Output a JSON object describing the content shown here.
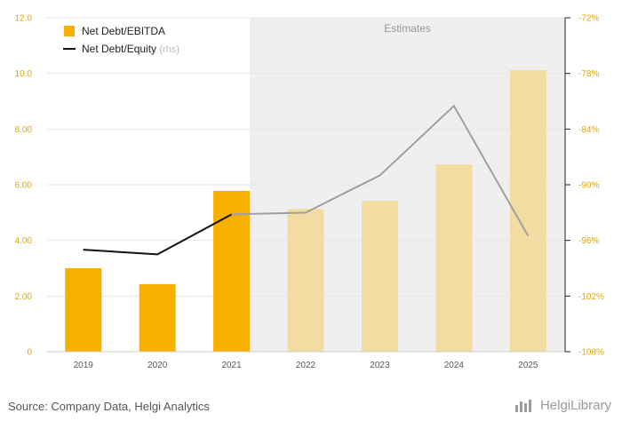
{
  "chart_data": {
    "type": "bar",
    "categories": [
      "2019",
      "2020",
      "2021",
      "2022",
      "2023",
      "2024",
      "2025"
    ],
    "estimate_start_index": 3,
    "estimates_label": "Estimates",
    "series": [
      {
        "name": "Net Debt/EBITDA",
        "type": "bar",
        "axis": "left",
        "values": [
          3.0,
          2.43,
          5.78,
          5.13,
          5.42,
          6.73,
          10.12
        ],
        "color": "#f7b000",
        "estimate_color": "#f3dca2"
      },
      {
        "name": "Net Debt/Equity",
        "name_suffix": "(rhs)",
        "type": "line",
        "axis": "right",
        "values": [
          -97.0,
          -97.5,
          -93.2,
          -93.0,
          -89.0,
          -81.5,
          -95.5
        ],
        "color": "#111111",
        "estimate_color": "#a0a0a0"
      }
    ],
    "y_left": {
      "ylim": [
        0,
        12
      ],
      "ticks": [
        0,
        2,
        4,
        6,
        8,
        10,
        12
      ],
      "tick_labels": [
        "0",
        "2.00",
        "4.00",
        "6.00",
        "8.00",
        "10.0",
        "12.0"
      ]
    },
    "y_right": {
      "ylim": [
        -108,
        -72
      ],
      "ticks": [
        -108,
        -102,
        -96,
        -90,
        -84,
        -78,
        -72
      ],
      "tick_labels": [
        "-108%",
        "-102%",
        "-96%",
        "-90%",
        "-84%",
        "-78%",
        "-72%"
      ]
    },
    "grid": true,
    "legend_position": "top-left"
  },
  "footer": {
    "source": "Source: Company Data, Helgi Analytics",
    "logo_text": "HelgiLibrary"
  }
}
